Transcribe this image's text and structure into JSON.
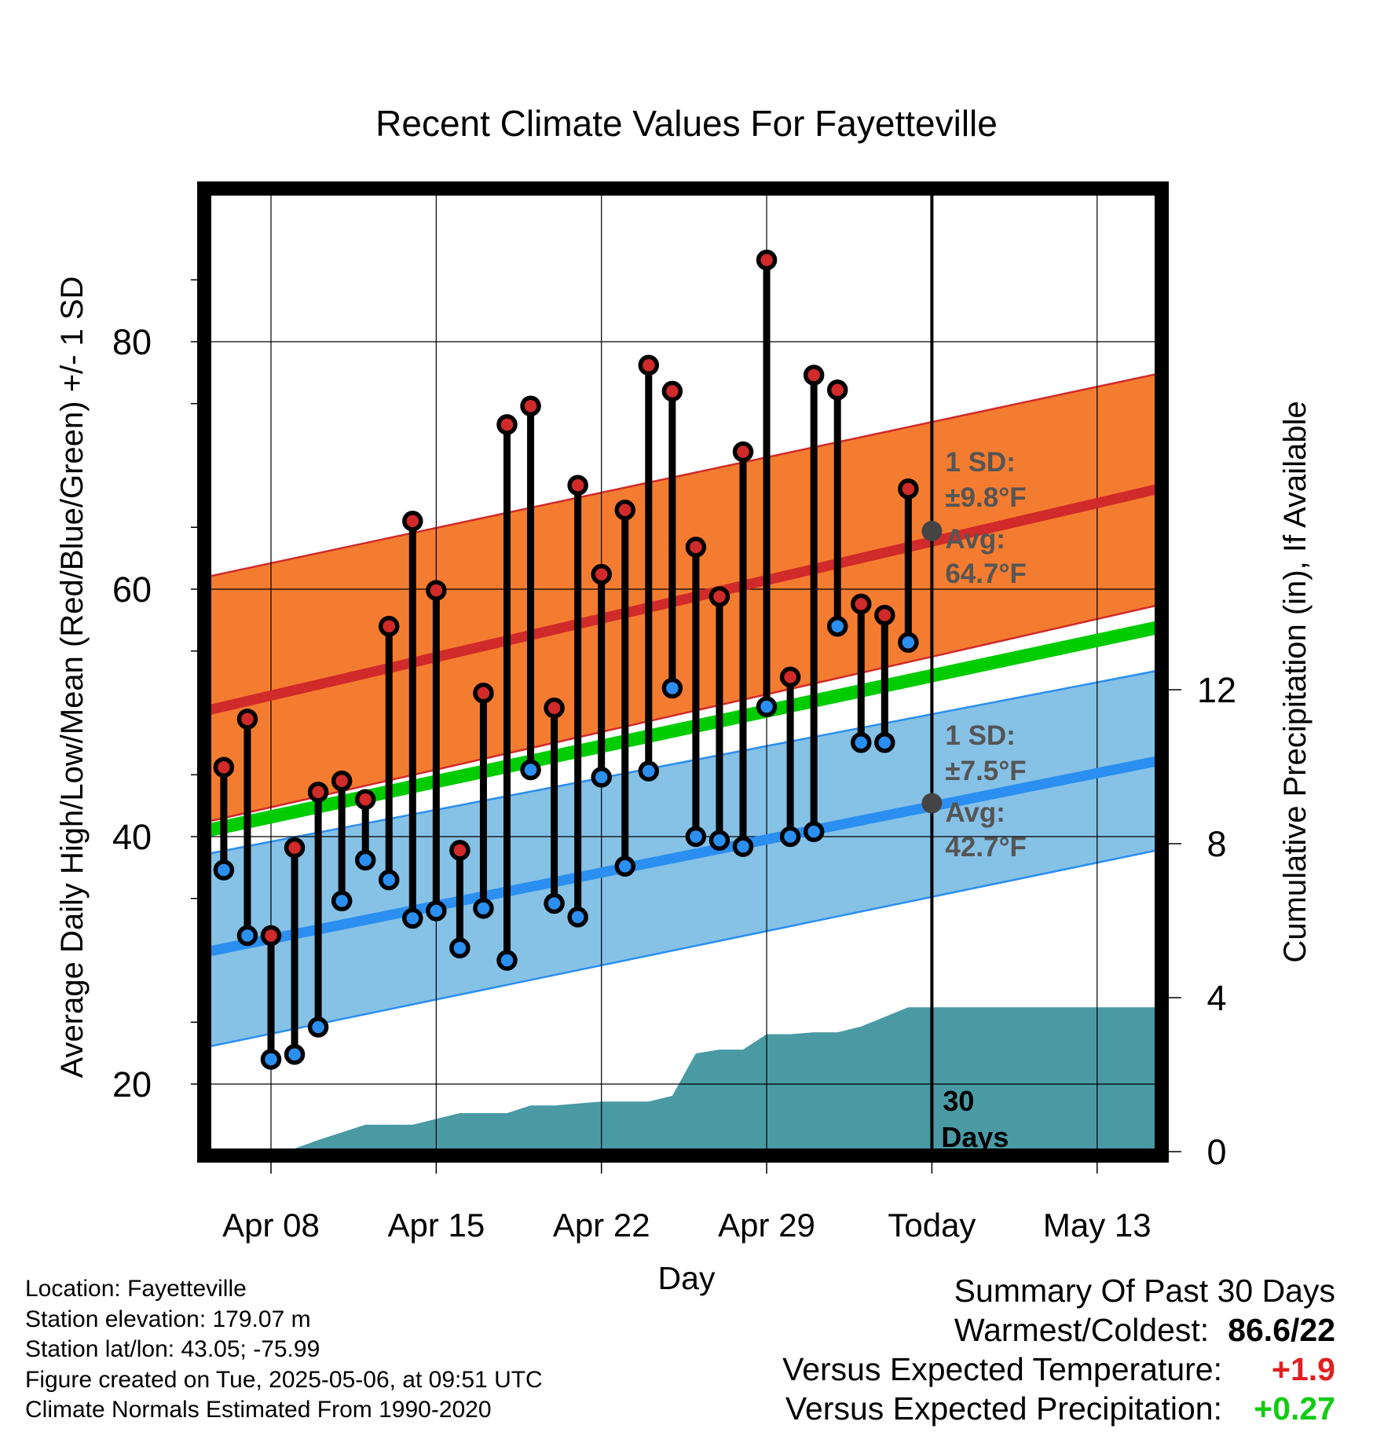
{
  "chart_data": {
    "type": "line",
    "title": "Recent Climate Values For Fayetteville",
    "xlabel": "Day",
    "ylabel": "Average Daily High/Low/Mean (Red/Blue/Green) +/- 1 SD",
    "y2label": "Cumulative Precipitation (in), If Available",
    "ylim": [
      14.5,
      92
    ],
    "y2lim": [
      0,
      22
    ],
    "y_ticks": [
      20,
      40,
      60,
      80
    ],
    "y2_ticks": [
      0,
      4,
      8,
      12
    ],
    "x_tick_labels": [
      {
        "day": 0,
        "label": "Apr 08"
      },
      {
        "day": 7,
        "label": "Apr 15"
      },
      {
        "day": 14,
        "label": "Apr 22"
      },
      {
        "day": 21,
        "label": "Apr 29"
      },
      {
        "day": 28,
        "label": "Today"
      },
      {
        "day": 35,
        "label": "May 13"
      }
    ],
    "x_range_days": [
      -2.7,
      37.8
    ],
    "today_day": 28,
    "today_label": "30 Days",
    "daily": {
      "day": [
        -2,
        -1,
        0,
        1,
        2,
        3,
        4,
        5,
        6,
        7,
        8,
        9,
        10,
        11,
        12,
        13,
        14,
        15,
        16,
        17,
        18,
        19,
        20,
        21,
        22,
        23,
        24,
        25,
        26,
        27
      ],
      "high": [
        45.6,
        49.5,
        32.0,
        39.1,
        43.6,
        44.5,
        43.0,
        57.0,
        65.5,
        59.9,
        38.9,
        51.6,
        73.3,
        74.8,
        50.4,
        68.4,
        61.2,
        66.4,
        78.1,
        76.0,
        63.4,
        59.4,
        71.1,
        86.6,
        52.9,
        77.3,
        76.1,
        58.8,
        57.9,
        68.1
      ],
      "low": [
        37.3,
        32.0,
        22.0,
        22.4,
        24.6,
        34.8,
        38.1,
        36.5,
        33.4,
        34.0,
        31.0,
        34.2,
        30.0,
        45.4,
        34.6,
        33.5,
        44.8,
        37.6,
        45.3,
        52.0,
        40.0,
        39.7,
        39.2,
        50.5,
        40.0,
        40.4,
        57.0,
        47.6,
        47.6,
        55.7
      ]
    },
    "normals": {
      "day": [
        -2.7,
        37.8
      ],
      "high_avg": [
        50.2,
        68.2
      ],
      "high_sd_upper": [
        61.0,
        77.5
      ],
      "high_sd_lower": [
        41.2,
        58.8
      ],
      "mean_avg": [
        40.5,
        57.0
      ],
      "low_avg": [
        30.7,
        46.2
      ],
      "low_sd_upper": [
        38.6,
        53.5
      ],
      "low_sd_lower": [
        23.0,
        39.0
      ]
    },
    "precip_cumulative": {
      "day": [
        -2.7,
        0,
        1,
        2,
        3,
        4,
        5,
        6,
        7,
        8,
        9,
        10,
        11,
        12,
        13,
        14,
        15,
        16,
        17,
        18,
        19,
        20,
        21,
        22,
        23,
        24,
        25,
        26,
        27,
        28,
        37.8
      ],
      "value": [
        0,
        0,
        0.08,
        0.3,
        0.5,
        0.7,
        0.7,
        0.7,
        0.85,
        1.0,
        1.0,
        1.0,
        1.2,
        1.2,
        1.25,
        1.3,
        1.3,
        1.3,
        1.45,
        2.55,
        2.65,
        2.65,
        3.05,
        3.05,
        3.1,
        3.1,
        3.25,
        3.5,
        3.75,
        3.75,
        3.75
      ]
    },
    "annotations": {
      "high_sd_label": "1 SD:",
      "high_sd_value": "±9.8°F",
      "high_avg_label": "Avg:",
      "high_avg_value": "64.7°F",
      "low_sd_label": "1 SD:",
      "low_sd_value": "±7.5°F",
      "low_avg_label": "Avg:",
      "low_avg_value": "42.7°F",
      "today_high_avg": 64.7,
      "today_low_avg": 42.7
    },
    "colors": {
      "high_band": "#f47c30",
      "high_line": "#d12a2a",
      "low_band": "#86c1e6",
      "low_line": "#2a8ff0",
      "mean_line": "#00cc00",
      "precip_fill": "#4a9aa4",
      "high_marker": "#d12a2a",
      "low_marker": "#2a8ff0",
      "avg_marker": "#444444",
      "annotation_text": "#555555"
    },
    "grid": true,
    "legend": "none"
  },
  "footer": {
    "location": "Location: Fayetteville",
    "elevation": "Station elevation: 179.07 m",
    "latlon": "Station lat/lon: 43.05; -75.99",
    "created": "Figure created on Tue, 2025-05-06, at 09:51 UTC",
    "normals": "Climate Normals Estimated From 1990-2020"
  },
  "summary": {
    "title": "Summary Of Past 30 Days",
    "warmest_label": "Warmest/Coldest:",
    "warmest_value": "86.6/22",
    "temp_label": "Versus Expected Temperature:",
    "temp_value": "+1.9",
    "precip_label": "Versus Expected Precipitation:",
    "precip_value": "+0.27",
    "temp_color": "#e02020",
    "precip_color": "#11cc11"
  }
}
